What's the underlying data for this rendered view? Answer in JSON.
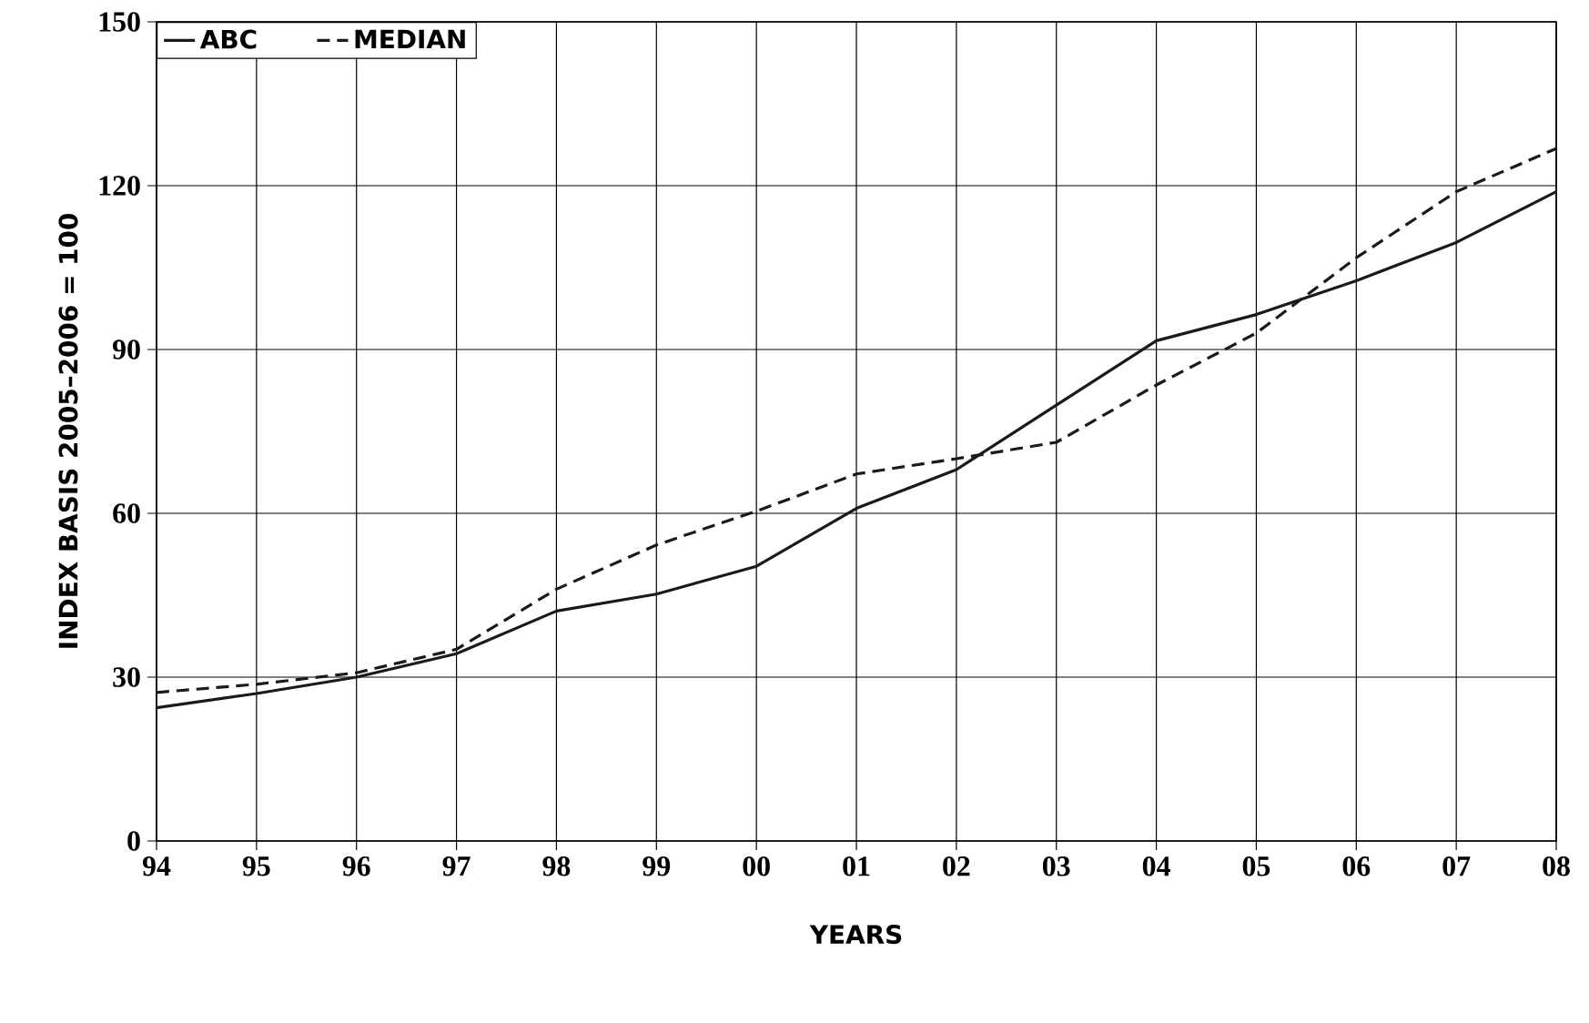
{
  "chart_data": {
    "type": "line",
    "xlabel": "YEARS",
    "ylabel": "INDEX BASIS 2005–2006 = 100",
    "categories": [
      "94",
      "95",
      "96",
      "97",
      "98",
      "99",
      "00",
      "01",
      "02",
      "03",
      "04",
      "05",
      "06",
      "07",
      "08"
    ],
    "series": [
      {
        "name": "ABC",
        "color": "#1a1a1a",
        "line_style": "solid",
        "values": [
          24.4,
          27,
          30,
          34.3,
          42.1,
          45.2,
          50.3,
          60.9,
          68,
          79.8,
          91.6,
          96.4,
          102.6,
          109.6,
          118.9
        ]
      },
      {
        "name": "MEDIAN",
        "color": "#1a1a1a",
        "line_style": "dashed",
        "values": [
          27.2,
          28.7,
          30.8,
          35.1,
          46.1,
          54.2,
          60.4,
          67.2,
          70,
          73,
          83.5,
          93,
          106.8,
          118.9,
          126.8
        ]
      }
    ],
    "ylim": [
      0,
      150
    ],
    "yticks": [
      0,
      30,
      60,
      90,
      120,
      150
    ],
    "grid": true,
    "legend": "top left",
    "marker": "none"
  }
}
